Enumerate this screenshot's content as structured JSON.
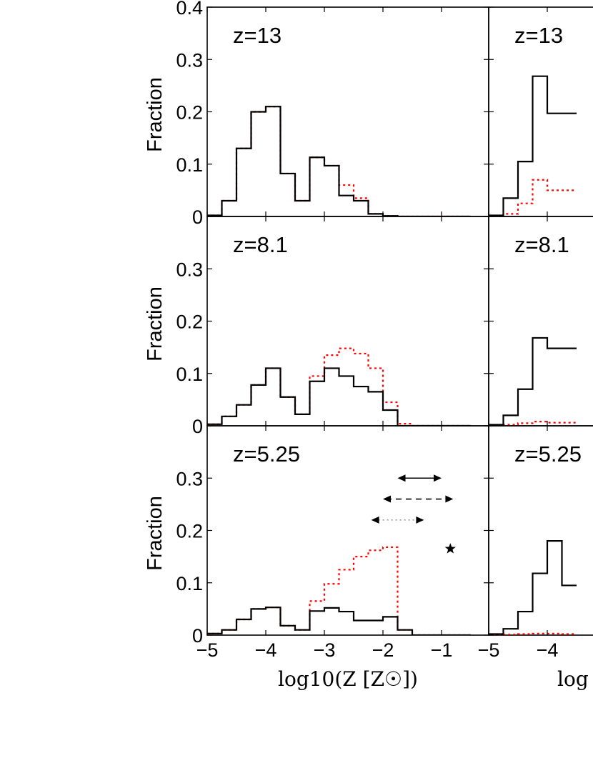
{
  "chart_data": [
    {
      "type": "histogram",
      "panel_label": "z=13",
      "ylabel": "Fraction",
      "xlabel": "",
      "xlim": [
        -5,
        -0.2
      ],
      "ylim": [
        0,
        0.4
      ],
      "y_ticks": [
        "0",
        "0.1",
        "0.2",
        "0.3",
        "0.4"
      ],
      "x_ticks": [],
      "bin_edges": [
        -5.0,
        -4.75,
        -4.5,
        -4.25,
        -4.0,
        -3.75,
        -3.5,
        -3.25,
        -3.0,
        -2.75,
        -2.5,
        -2.25,
        -2.0,
        -1.75,
        -1.5,
        -1.25,
        -1.0,
        -0.75,
        -0.5
      ],
      "series": [
        {
          "style": "solid",
          "color": "#000000",
          "values": [
            0.002,
            0.03,
            0.13,
            0.2,
            0.21,
            0.082,
            0.03,
            0.113,
            0.097,
            0.04,
            0.03,
            0.005,
            0.001,
            0.0,
            0.0,
            0.0,
            0.0,
            0.0
          ]
        },
        {
          "style": "dotted",
          "color": "#ff0000",
          "values": [
            0.002,
            0.03,
            0.13,
            0.2,
            0.21,
            0.082,
            0.03,
            0.113,
            0.097,
            0.06,
            0.035,
            0.005,
            0.001,
            0.0,
            0.0,
            0.0,
            0.0,
            0.0
          ]
        }
      ]
    },
    {
      "type": "histogram",
      "panel_label": "z=8.1",
      "ylabel": "Fraction",
      "xlabel": "",
      "xlim": [
        -5,
        -0.2
      ],
      "ylim": [
        0,
        0.4
      ],
      "y_ticks": [
        "0",
        "0.1",
        "0.2",
        "0.3"
      ],
      "x_ticks": [],
      "bin_edges": [
        -5.0,
        -4.75,
        -4.5,
        -4.25,
        -4.0,
        -3.75,
        -3.5,
        -3.25,
        -3.0,
        -2.75,
        -2.5,
        -2.25,
        -2.0,
        -1.75,
        -1.5,
        -1.25,
        -1.0,
        -0.75,
        -0.5
      ],
      "series": [
        {
          "style": "solid",
          "color": "#000000",
          "values": [
            0.003,
            0.018,
            0.04,
            0.078,
            0.11,
            0.055,
            0.022,
            0.085,
            0.11,
            0.095,
            0.075,
            0.065,
            0.03,
            0.0,
            0.0,
            0.0,
            0.0,
            0.0
          ]
        },
        {
          "style": "dotted",
          "color": "#ff0000",
          "values": [
            0.003,
            0.018,
            0.04,
            0.078,
            0.11,
            0.055,
            0.022,
            0.095,
            0.135,
            0.148,
            0.138,
            0.11,
            0.045,
            0.004,
            0.0,
            0.0,
            0.0,
            0.0
          ]
        }
      ]
    },
    {
      "type": "histogram",
      "panel_label": "z=5.25",
      "ylabel": "Fraction",
      "xlabel": "log10(Z [Z☉])",
      "xlim": [
        -5,
        -0.2
      ],
      "ylim": [
        0,
        0.4
      ],
      "y_ticks": [
        "0",
        "0.1",
        "0.2",
        "0.3"
      ],
      "x_ticks": [
        "−5",
        "−4",
        "−3",
        "−2",
        "−1"
      ],
      "bin_edges": [
        -5.0,
        -4.75,
        -4.5,
        -4.25,
        -4.0,
        -3.75,
        -3.5,
        -3.25,
        -3.0,
        -2.75,
        -2.5,
        -2.25,
        -2.0,
        -1.75,
        -1.5,
        -1.25,
        -1.0,
        -0.75,
        -0.5
      ],
      "series": [
        {
          "style": "solid",
          "color": "#000000",
          "values": [
            0.003,
            0.01,
            0.03,
            0.05,
            0.053,
            0.018,
            0.01,
            0.046,
            0.052,
            0.045,
            0.028,
            0.028,
            0.035,
            0.01,
            0.0,
            0.0,
            0.0,
            0.0
          ]
        },
        {
          "style": "dotted",
          "color": "#ff0000",
          "values": [
            0.003,
            0.01,
            0.03,
            0.05,
            0.053,
            0.018,
            0.01,
            0.065,
            0.098,
            0.125,
            0.15,
            0.162,
            0.168,
            0.01,
            0.0,
            0.0,
            0.0,
            0.0
          ]
        }
      ],
      "annotations": [
        {
          "type": "double-arrow",
          "style": "solid",
          "x_range": [
            -1.75,
            -1.0
          ],
          "y": 0.3
        },
        {
          "type": "double-arrow",
          "style": "dashed",
          "x_range": [
            -2.0,
            -0.8
          ],
          "y": 0.26
        },
        {
          "type": "double-arrow",
          "style": "dotted",
          "x_range": [
            -2.2,
            -1.3
          ],
          "y": 0.22
        },
        {
          "type": "star",
          "x": -0.85,
          "y": 0.165
        }
      ]
    },
    {
      "type": "histogram",
      "panel_label": "z=13",
      "ylabel": "",
      "xlabel": "",
      "xlim": [
        -5,
        -3
      ],
      "ylim": [
        0,
        0.4
      ],
      "x_ticks": [],
      "bin_edges": [
        -5.0,
        -4.75,
        -4.5,
        -4.25,
        -4.0,
        -3.75,
        -3.5
      ],
      "series": [
        {
          "style": "solid",
          "color": "#000000",
          "values": [
            0.002,
            0.035,
            0.105,
            0.268,
            0.197,
            0.197
          ]
        },
        {
          "style": "dotted",
          "color": "#ff0000",
          "values": [
            0.0,
            0.005,
            0.025,
            0.07,
            0.05,
            0.05
          ]
        }
      ]
    },
    {
      "type": "histogram",
      "panel_label": "z=8.1",
      "ylabel": "",
      "xlabel": "",
      "xlim": [
        -5,
        -3
      ],
      "ylim": [
        0,
        0.4
      ],
      "x_ticks": [],
      "bin_edges": [
        -5.0,
        -4.75,
        -4.5,
        -4.25,
        -4.0,
        -3.75,
        -3.5
      ],
      "series": [
        {
          "style": "solid",
          "color": "#000000",
          "values": [
            0.002,
            0.02,
            0.07,
            0.168,
            0.148,
            0.148
          ]
        },
        {
          "style": "dotted",
          "color": "#ff0000",
          "values": [
            0.0,
            0.002,
            0.005,
            0.008,
            0.006,
            0.006
          ]
        }
      ]
    },
    {
      "type": "histogram",
      "panel_label": "z=5.25",
      "ylabel": "",
      "xlabel": "log",
      "xlim": [
        -5,
        -3
      ],
      "ylim": [
        0,
        0.4
      ],
      "x_ticks": [
        "−5",
        "−4"
      ],
      "bin_edges": [
        -5.0,
        -4.75,
        -4.5,
        -4.25,
        -4.0,
        -3.75,
        -3.5
      ],
      "series": [
        {
          "style": "solid",
          "color": "#000000",
          "values": [
            0.002,
            0.012,
            0.045,
            0.118,
            0.18,
            0.095
          ]
        },
        {
          "style": "dotted",
          "color": "#ff0000",
          "values": [
            0.0,
            0.001,
            0.002,
            0.003,
            0.003,
            0.002
          ]
        }
      ]
    }
  ]
}
